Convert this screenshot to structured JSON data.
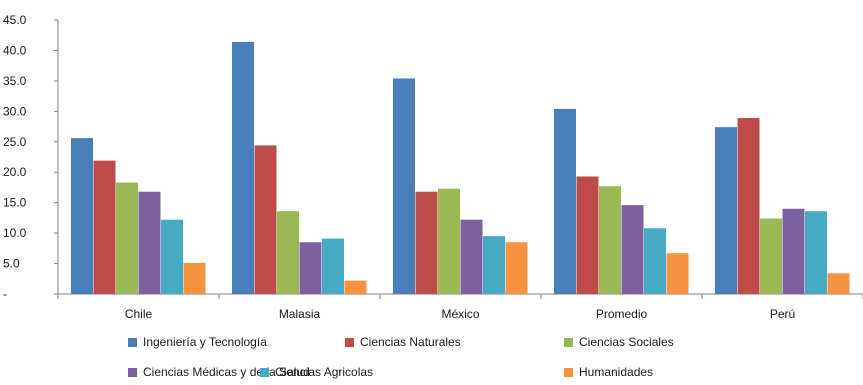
{
  "chart_data": {
    "type": "bar",
    "categories": [
      "Chile",
      "Malasia",
      "México",
      "Promedio",
      "Perú"
    ],
    "series": [
      {
        "name": "Ingeniería y Tecnología",
        "color": "#4a7ebb",
        "values": [
          25.6,
          41.4,
          35.4,
          30.4,
          27.4
        ]
      },
      {
        "name": "Ciencias Naturales",
        "color": "#be4b48",
        "values": [
          21.9,
          24.4,
          16.8,
          19.3,
          28.9
        ]
      },
      {
        "name": "Ciencias Sociales",
        "color": "#98b954",
        "values": [
          18.3,
          13.6,
          17.3,
          17.7,
          12.4
        ]
      },
      {
        "name": "Ciencias Médicas y de la Salud",
        "color": "#7d60a0",
        "values": [
          16.8,
          8.5,
          12.2,
          14.6,
          14.0
        ]
      },
      {
        "name": "Ciencias Agricolas",
        "color": "#46aac5",
        "values": [
          12.2,
          9.1,
          9.5,
          10.8,
          13.6
        ]
      },
      {
        "name": "Humanidades",
        "color": "#f69240",
        "values": [
          5.1,
          2.2,
          8.5,
          6.7,
          3.4
        ]
      }
    ],
    "y_ticks": [
      "-",
      "5.0",
      "10.0",
      "15.0",
      "20.0",
      "25.0",
      "30.0",
      "35.0",
      "40.0",
      "45.0"
    ],
    "ylim": [
      0,
      45
    ],
    "title": "",
    "xlabel": "",
    "ylabel": "",
    "grid": false,
    "legend_position": "bottom"
  }
}
